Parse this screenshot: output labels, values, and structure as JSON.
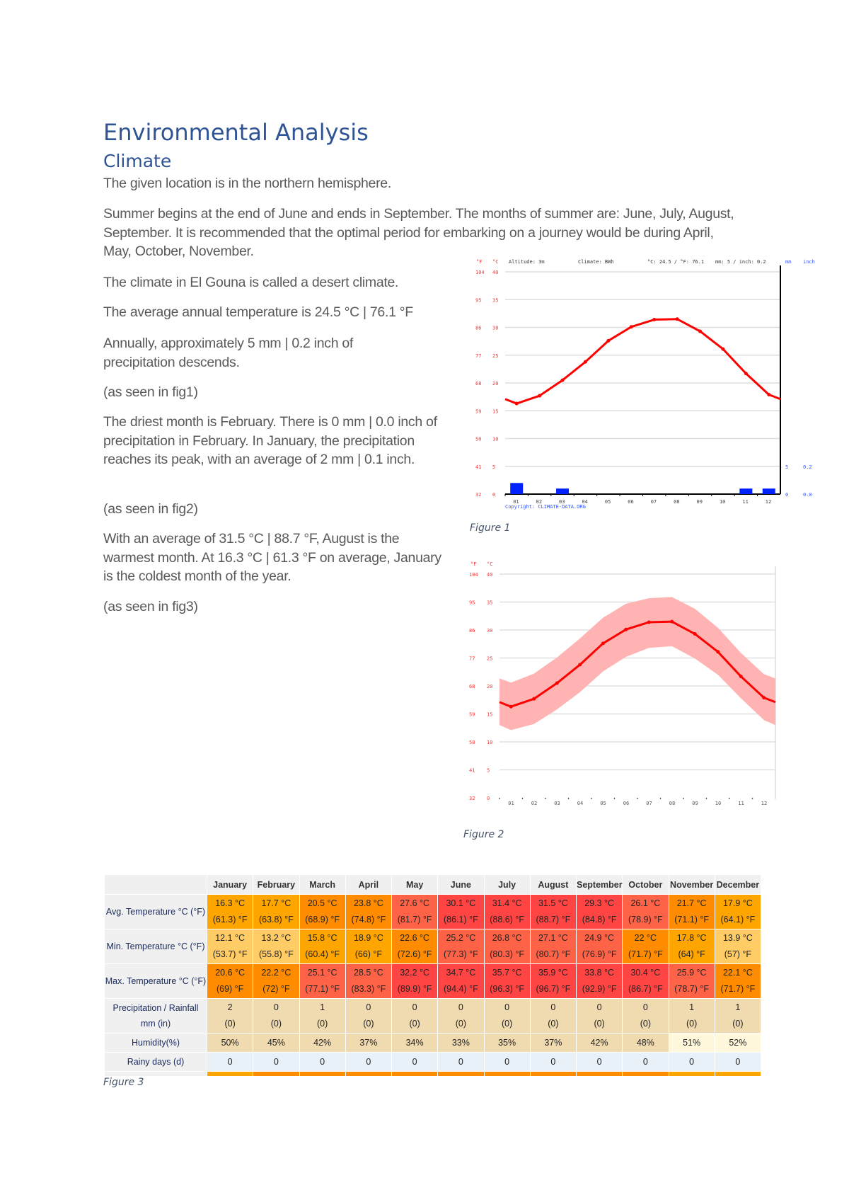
{
  "heading": "Environmental Analysis",
  "subheading": "Climate",
  "paragraphs": [
    "The given location is in the northern hemisphere.",
    "Summer begins at the end of June and ends in September. The months of summer are: June, July, August, September. It is recommended that the optimal period for embarking on a journey would be during April, May, October, November.",
    "The climate in El Gouna is called a desert climate.",
    "The average annual temperature is 24.5 °C | 76.1 °F",
    "Annually, approximately 5 mm | 0.2 inch of precipitation descends.",
    "(as seen in fig1)",
    "The driest month is February. There is 0 mm | 0.0 inch of precipitation in February. In January, the precipitation reaches its peak, with an average of 2 mm | 0.1 inch.",
    "(as seen in fig2)",
    "With an average of 31.5 °C | 88.7 °F, August is the warmest month. At 16.3 °C | 61.3 °F on average, January is the coldest month of the year.",
    "(as seen in fig3)"
  ],
  "captions": {
    "fig1": "Figure 1",
    "fig2": "Figure 2",
    "fig3": "Figure 3"
  },
  "chart_data": [
    {
      "type": "line",
      "header": {
        "altitude": "Altitude: 3m",
        "climate": "Climate: BWh",
        "temp": "°C: 24.5 / °F: 76.1",
        "precip": "mm: 5 / inch: 0.2"
      },
      "unit_labels": {
        "f": "°F",
        "c": "°C",
        "mm": "mm",
        "inch": "inch"
      },
      "categories": [
        "01",
        "02",
        "03",
        "04",
        "05",
        "06",
        "07",
        "08",
        "09",
        "10",
        "11",
        "12"
      ],
      "temperature_c": [
        16.3,
        17.7,
        20.5,
        23.8,
        27.6,
        30.1,
        31.4,
        31.5,
        29.3,
        26.1,
        21.7,
        17.9
      ],
      "precipitation_mm": [
        2,
        0,
        1,
        0,
        0,
        0,
        0,
        0,
        0,
        0,
        1,
        1
      ],
      "ylim_c": [
        0,
        40
      ],
      "yticks_c": [
        "40",
        "35",
        "30",
        "25",
        "20",
        "15",
        "10",
        "5",
        "0"
      ],
      "yticks_f": [
        "104",
        "95",
        "86",
        "77",
        "68",
        "59",
        "50",
        "41",
        "32"
      ],
      "right_ticks_mm": [
        "5",
        "0"
      ],
      "right_ticks_inch": [
        "0.2",
        "0.0"
      ],
      "copyright": "Copyright: CLIMATE-DATA.ORG",
      "colors": {
        "temp": "#ff0000",
        "precip": "#0022ff",
        "axis_text": "#ff3333",
        "precip_text": "#3355ff"
      }
    },
    {
      "type": "area",
      "unit_labels": {
        "f": "°F",
        "c": "°C"
      },
      "categories": [
        "01",
        "02",
        "03",
        "04",
        "05",
        "06",
        "07",
        "08",
        "09",
        "10",
        "11",
        "12"
      ],
      "mean_c": [
        16.3,
        17.7,
        20.5,
        23.8,
        27.6,
        30.1,
        31.4,
        31.5,
        29.3,
        26.1,
        21.7,
        17.9
      ],
      "min_c": [
        12.1,
        13.2,
        15.8,
        18.9,
        22.6,
        25.2,
        26.8,
        27.1,
        24.9,
        22,
        17.8,
        13.9
      ],
      "max_c": [
        20.6,
        22.2,
        25.1,
        28.5,
        32.2,
        34.7,
        35.7,
        35.9,
        33.8,
        30.4,
        25.9,
        22.1
      ],
      "ylim_c": [
        0,
        40
      ],
      "yticks_c": [
        "40",
        "35",
        "30",
        "25",
        "20",
        "15",
        "10",
        "5",
        "0"
      ],
      "yticks_f": [
        "104",
        "95",
        "86",
        "77",
        "68",
        "59",
        "50",
        "41",
        "32"
      ],
      "colors": {
        "line": "#ff0000",
        "band": "#ffb3b3"
      }
    }
  ],
  "table": {
    "months": [
      "January",
      "February",
      "March",
      "April",
      "May",
      "June",
      "July",
      "August",
      "September",
      "October",
      "November",
      "December"
    ],
    "palette": {
      "light": "#ffcc66",
      "orange": "#ffa500",
      "dark": "#ff8c00",
      "tomato": "#ff6347",
      "red": "#ff4444",
      "wheat": "#f0dab0",
      "cream": "#fff8dc",
      "blue": "#e8f0f8",
      "label": "#f0f0f0"
    },
    "rows": [
      {
        "label": "Avg. Temperature °C (°F)",
        "type": "temp",
        "c": [
          "16.3 °C",
          "17.7 °C",
          "20.5 °C",
          "23.8 °C",
          "27.6 °C",
          "30.1 °C",
          "31.4 °C",
          "31.5 °C",
          "29.3 °C",
          "26.1 °C",
          "21.7 °C",
          "17.9 °C"
        ],
        "f": [
          "(61.3) °F",
          "(63.8) °F",
          "(68.9) °F",
          "(74.8) °F",
          "(81.7) °F",
          "(86.1) °F",
          "(88.6) °F",
          "(88.7) °F",
          "(84.8) °F",
          "(78.9) °F",
          "(71.1) °F",
          "(64.1) °F"
        ],
        "colors": [
          "orange",
          "orange",
          "dark",
          "dark",
          "tomato",
          "red",
          "red",
          "red",
          "red",
          "tomato",
          "dark",
          "orange"
        ]
      },
      {
        "label": "Min. Temperature °C (°F)",
        "type": "temp",
        "c": [
          "12.1 °C",
          "13.2 °C",
          "15.8 °C",
          "18.9 °C",
          "22.6 °C",
          "25.2 °C",
          "26.8 °C",
          "27.1 °C",
          "24.9 °C",
          "22 °C",
          "17.8 °C",
          "13.9 °C"
        ],
        "f": [
          "(53.7) °F",
          "(55.8) °F",
          "(60.4) °F",
          "(66) °F",
          "(72.6) °F",
          "(77.3) °F",
          "(80.3) °F",
          "(80.7) °F",
          "(76.9) °F",
          "(71.7) °F",
          "(64) °F",
          "(57) °F"
        ],
        "colors": [
          "light",
          "light",
          "orange",
          "orange",
          "dark",
          "tomato",
          "tomato",
          "tomato",
          "tomato",
          "dark",
          "orange",
          "light"
        ]
      },
      {
        "label": "Max. Temperature °C (°F)",
        "type": "temp",
        "c": [
          "20.6 °C",
          "22.2 °C",
          "25.1 °C",
          "28.5 °C",
          "32.2 °C",
          "34.7 °C",
          "35.7 °C",
          "35.9 °C",
          "33.8 °C",
          "30.4 °C",
          "25.9 °C",
          "22.1 °C"
        ],
        "f": [
          "(69) °F",
          "(72) °F",
          "(77.1) °F",
          "(83.3) °F",
          "(89.9) °F",
          "(94.4) °F",
          "(96.3) °F",
          "(96.7) °F",
          "(92.9) °F",
          "(86.7) °F",
          "(78.7) °F",
          "(71.7) °F"
        ],
        "colors": [
          "dark",
          "dark",
          "tomato",
          "tomato",
          "red",
          "red",
          "red",
          "red",
          "red",
          "red",
          "tomato",
          "dark"
        ]
      },
      {
        "label": "Precipitation / Rainfall mm (in)",
        "type": "temp",
        "c": [
          "2",
          "0",
          "1",
          "0",
          "0",
          "0",
          "0",
          "0",
          "0",
          "0",
          "1",
          "1"
        ],
        "f": [
          "(0)",
          "(0)",
          "(0)",
          "(0)",
          "(0)",
          "(0)",
          "(0)",
          "(0)",
          "(0)",
          "(0)",
          "(0)",
          "(0)"
        ],
        "colors": [
          "wheat",
          "wheat",
          "wheat",
          "wheat",
          "wheat",
          "wheat",
          "wheat",
          "wheat",
          "wheat",
          "wheat",
          "wheat",
          "wheat"
        ]
      },
      {
        "label": "Humidity(%)",
        "type": "single",
        "c": [
          "50%",
          "45%",
          "42%",
          "37%",
          "34%",
          "33%",
          "35%",
          "37%",
          "42%",
          "48%",
          "51%",
          "52%"
        ],
        "colors": [
          "wheat",
          "wheat",
          "wheat",
          "wheat",
          "wheat",
          "wheat",
          "wheat",
          "wheat",
          "wheat",
          "wheat",
          "cream",
          "cream"
        ]
      },
      {
        "label": "Rainy days (d)",
        "type": "single",
        "c": [
          "0",
          "0",
          "0",
          "0",
          "0",
          "0",
          "0",
          "0",
          "0",
          "0",
          "0",
          "0"
        ],
        "colors": [
          "blue",
          "blue",
          "blue",
          "blue",
          "blue",
          "blue",
          "blue",
          "blue",
          "blue",
          "blue",
          "blue",
          "blue"
        ]
      }
    ],
    "bottom_bar_colors": [
      "orange",
      "dark",
      "dark",
      "dark",
      "dark",
      "dark",
      "dark",
      "dark",
      "dark",
      "dark",
      "orange",
      "orange"
    ]
  }
}
